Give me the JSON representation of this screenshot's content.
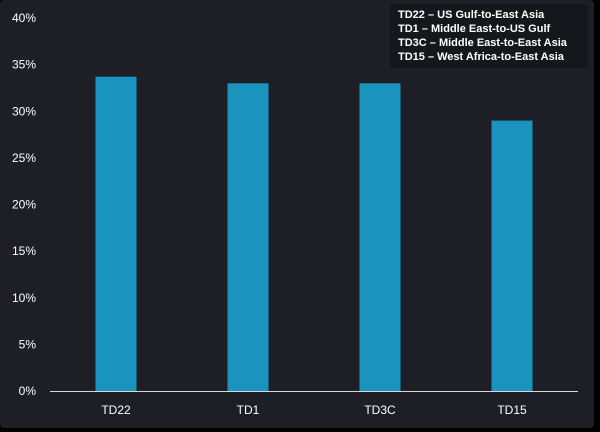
{
  "chart_data": {
    "type": "bar",
    "categories": [
      "TD22",
      "TD1",
      "TD3C",
      "TD15"
    ],
    "values": [
      33.7,
      33.0,
      33.0,
      29.0
    ],
    "ylim": [
      0,
      40
    ],
    "y_ticks": [
      "0%",
      "5%",
      "10%",
      "15%",
      "20%",
      "25%",
      "30%",
      "35%",
      "40%"
    ],
    "y_tick_values": [
      0,
      5,
      10,
      15,
      20,
      25,
      30,
      35,
      40
    ],
    "title": "",
    "xlabel": "",
    "ylabel": "",
    "grid": false,
    "legend_position": "top-right",
    "legend_entries": [
      "TD22 – US Gulf-to-East Asia",
      "TD1 – Middle East-to-US Gulf",
      "TD3C – Middle East-to-East Asia",
      "TD15 – West Africa-to-East Asia"
    ],
    "colors": {
      "bar": "#1a93bf",
      "background": "#1e1f26",
      "text": "#ffffff",
      "axis": "#d8d8d8"
    }
  }
}
